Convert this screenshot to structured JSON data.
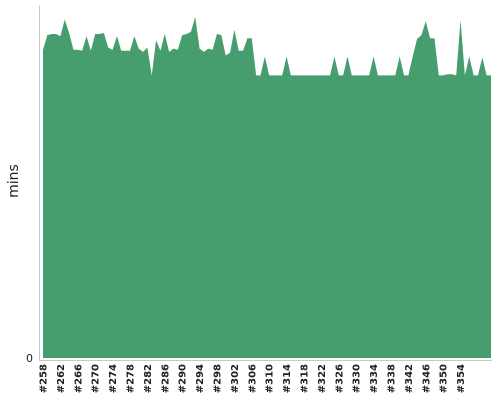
{
  "chart_data": {
    "type": "area",
    "ylabel": "mins",
    "y_tick_labels": [
      "0"
    ],
    "ylim": [
      0,
      100
    ],
    "grid": false,
    "legend": "none",
    "color": "#469e6e",
    "x_tick_labels": [
      "#258",
      "#262",
      "#266",
      "#270",
      "#274",
      "#278",
      "#282",
      "#286",
      "#290",
      "#294",
      "#298",
      "#302",
      "#306",
      "#310",
      "#314",
      "#318",
      "#322",
      "#326",
      "#330",
      "#334",
      "#338",
      "#342",
      "#346",
      "#350",
      "#354"
    ],
    "x_start": 258,
    "values": [
      86.6,
      90.7,
      91.0,
      91.0,
      90.4,
      95.1,
      91.3,
      86.6,
      86.6,
      86.3,
      90.4,
      86.3,
      91.0,
      91.0,
      91.3,
      87.2,
      86.6,
      90.4,
      86.3,
      86.3,
      86.3,
      90.4,
      86.9,
      86.0,
      87.2,
      79.4,
      89.3,
      86.3,
      91.0,
      86.0,
      86.9,
      86.6,
      90.7,
      91.0,
      91.6,
      95.8,
      86.9,
      86.0,
      86.9,
      86.6,
      91.0,
      90.7,
      85.0,
      85.7,
      92.2,
      86.3,
      86.3,
      89.8,
      89.8,
      79.4,
      79.4,
      84.7,
      79.4,
      79.4,
      79.4,
      79.4,
      84.7,
      79.4,
      79.4,
      79.4,
      79.4,
      79.4,
      79.4,
      79.4,
      79.4,
      79.4,
      79.4,
      84.7,
      79.4,
      79.4,
      84.7,
      79.4,
      79.4,
      79.4,
      79.4,
      79.4,
      84.7,
      79.4,
      79.4,
      79.4,
      79.4,
      79.4,
      84.7,
      79.4,
      79.4,
      84.7,
      89.6,
      90.7,
      94.6,
      89.8,
      89.8,
      79.4,
      79.4,
      79.7,
      79.7,
      79.4,
      94.9,
      79.4,
      84.7,
      79.4,
      79.4,
      84.4,
      79.4,
      79.4
    ]
  }
}
